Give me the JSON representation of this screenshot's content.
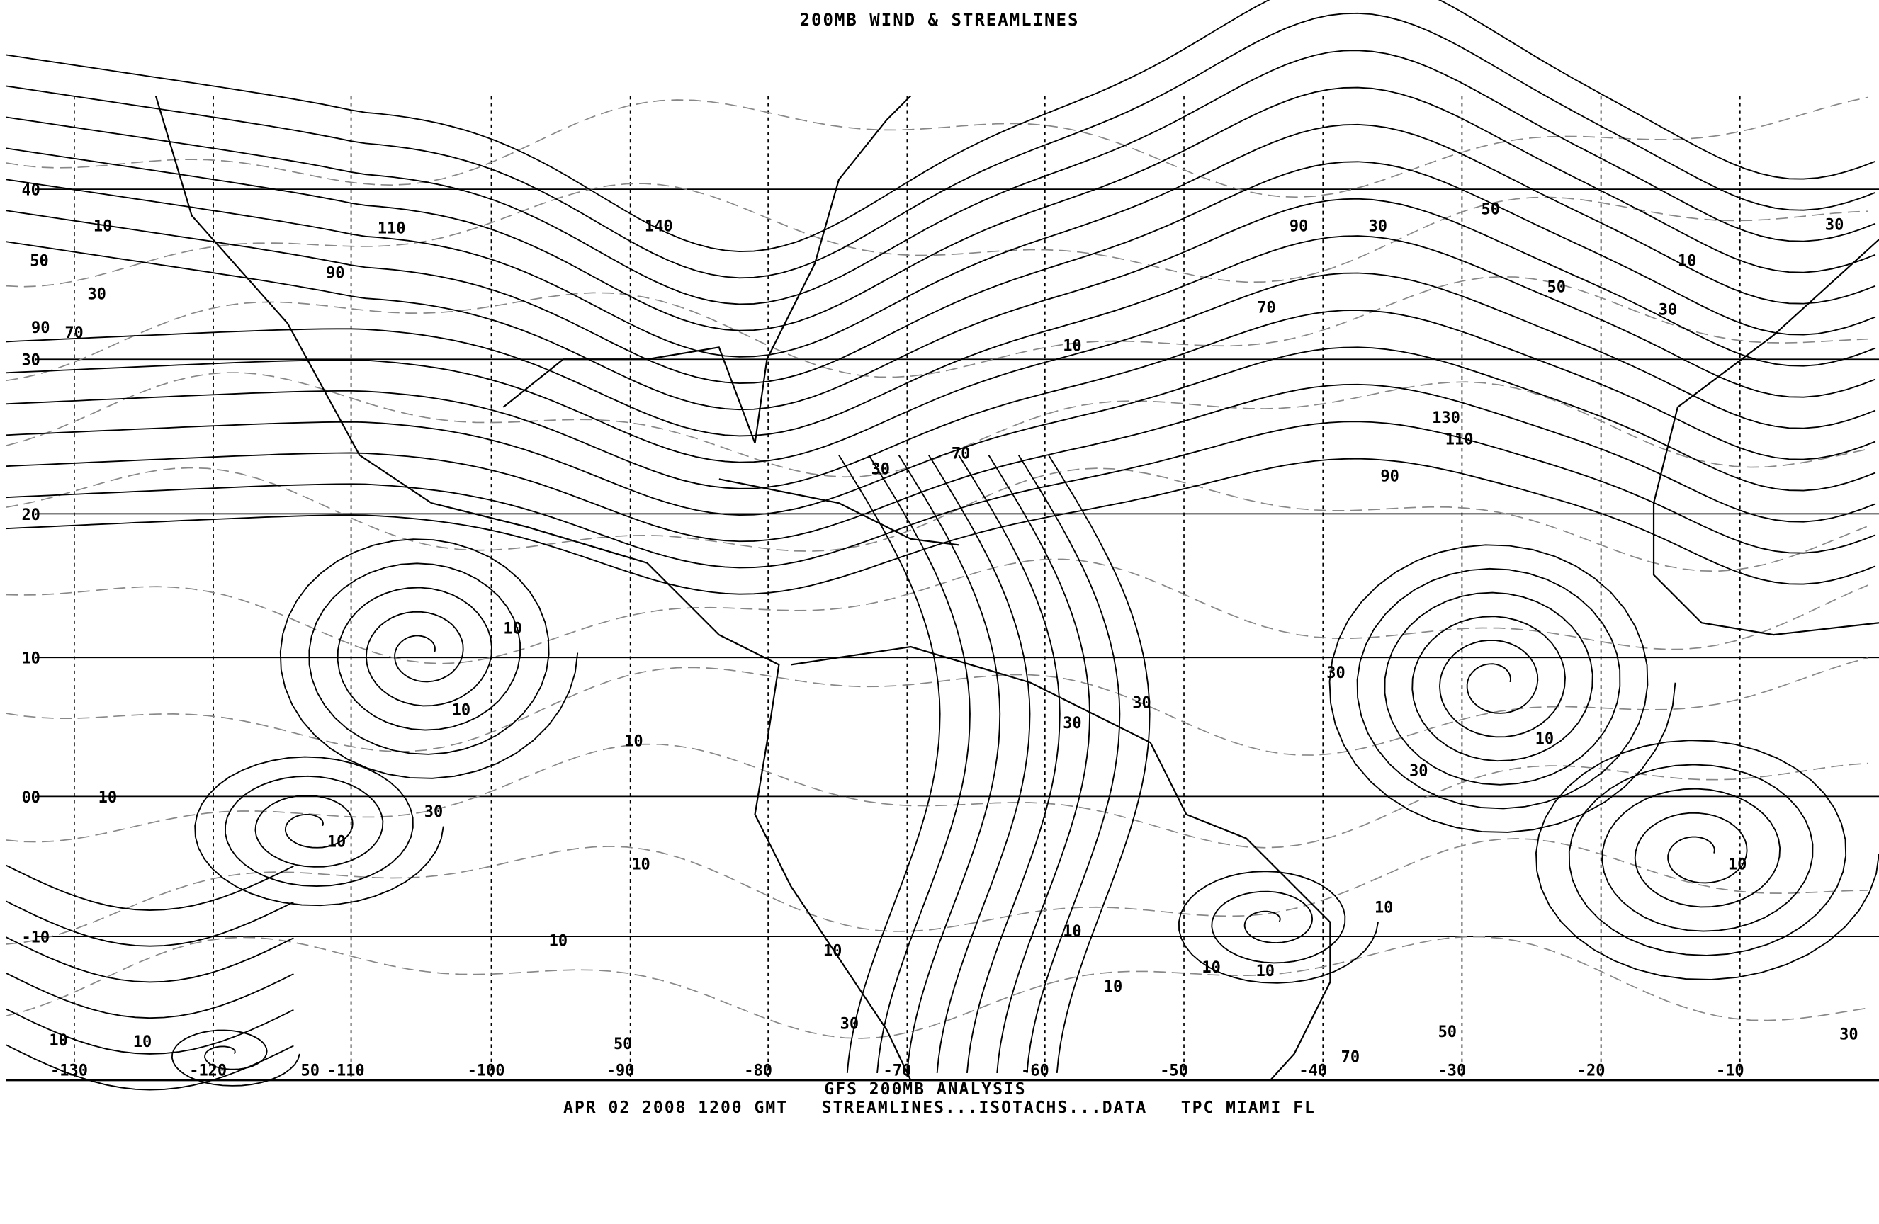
{
  "title": "200MB WIND & STREAMLINES",
  "footer": {
    "line1": "GFS 200MB ANALYSIS",
    "date": "APR 02 2008 1200 GMT",
    "products": "STREAMLINES...ISOTACHS...DATA",
    "source": "TPC MIAMI FL"
  },
  "map": {
    "style": "monochrome",
    "line_color": "#000000",
    "isotach_color": "#888888",
    "latitude_labels": [
      "40",
      "30",
      "20",
      "10",
      "00",
      "-10"
    ],
    "longitude_labels": [
      "-130",
      "-120",
      "-110",
      "-100",
      "-90",
      "-80",
      "-70",
      "-60",
      "-50",
      "-40",
      "-30",
      "-20",
      "-10"
    ],
    "isotach_labels": [
      "10",
      "50",
      "30",
      "70",
      "90",
      "110",
      "90",
      "140",
      "10",
      "90",
      "30",
      "50",
      "70",
      "10",
      "30",
      "50",
      "30",
      "130",
      "110",
      "90",
      "70",
      "30",
      "10",
      "10",
      "10",
      "30",
      "30",
      "30",
      "10",
      "30",
      "10",
      "30",
      "10",
      "10",
      "10",
      "10",
      "10",
      "10",
      "10",
      "10",
      "10",
      "10",
      "10",
      "10",
      "30",
      "50",
      "70",
      "30",
      "50",
      "50"
    ]
  }
}
